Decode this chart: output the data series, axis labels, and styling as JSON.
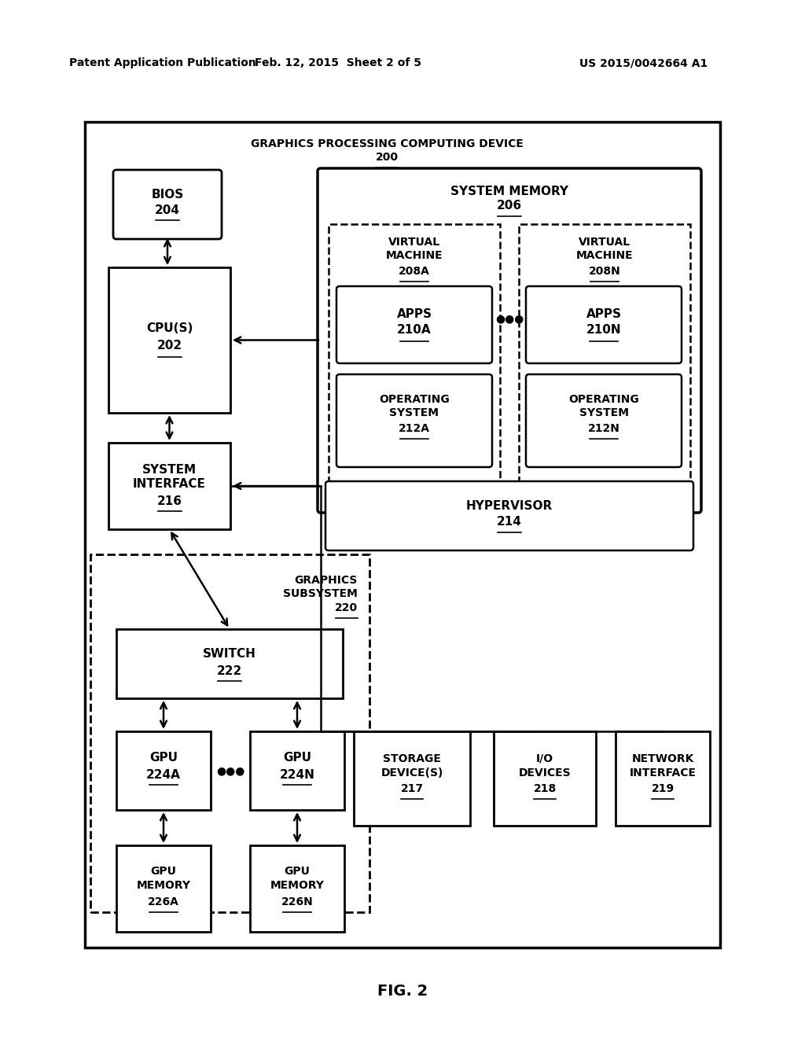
{
  "bg_color": "#ffffff",
  "header_left": "Patent Application Publication",
  "header_center": "Feb. 12, 2015  Sheet 2 of 5",
  "header_right": "US 2015/0042664 A1",
  "fig_label": "FIG. 2"
}
